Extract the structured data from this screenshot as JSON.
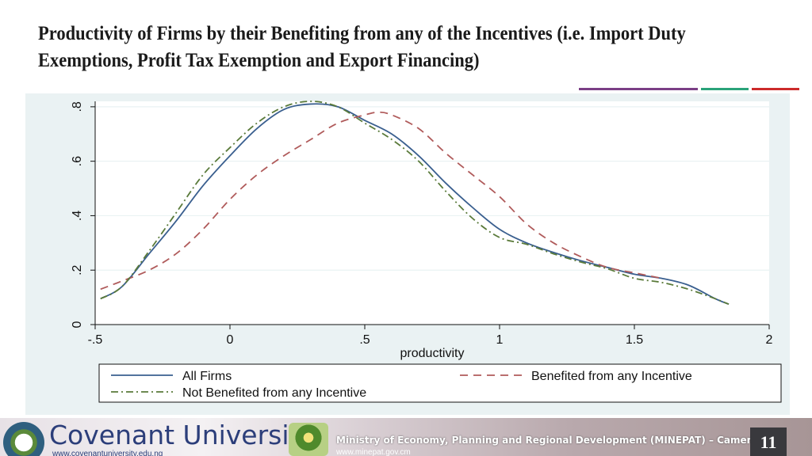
{
  "slide": {
    "title": "Productivity of Firms by their Benefiting from any of the Incentives (i.e. Import Duty Exemptions, Profit Tax Exemption and Export Financing)",
    "page_number": "11",
    "accent_colors": [
      "#7b3f85",
      "#2aa37a",
      "#cc2a2a"
    ]
  },
  "footer": {
    "university_name": "Covenant University",
    "university_url": "www.covenantuniversity.edu.ng",
    "ministry": "Ministry of Economy, Planning and Regional Development (MINEPAT) – Cameroon",
    "ministry_url": "www.minepat.gov.cm"
  },
  "chart_data": {
    "type": "line",
    "title": "",
    "xlabel": "productivity",
    "ylabel": "",
    "xlim": [
      -0.5,
      2
    ],
    "ylim": [
      0,
      0.82
    ],
    "x_ticks": [
      -0.5,
      0,
      0.5,
      1,
      1.5,
      2
    ],
    "x_tick_labels": [
      "-.5",
      "0",
      ".5",
      "1",
      "1.5",
      "2"
    ],
    "y_ticks": [
      0,
      0.2,
      0.4,
      0.6,
      0.8
    ],
    "y_tick_labels": [
      "0",
      ".2",
      ".4",
      ".6",
      ".8"
    ],
    "grid": true,
    "legend_position": "bottom",
    "series": [
      {
        "name": "All Firms",
        "color": "#3a5f8f",
        "dash": "solid",
        "points": [
          [
            -0.48,
            0.095
          ],
          [
            -0.4,
            0.14
          ],
          [
            -0.3,
            0.26
          ],
          [
            -0.2,
            0.38
          ],
          [
            -0.1,
            0.51
          ],
          [
            0,
            0.62
          ],
          [
            0.1,
            0.72
          ],
          [
            0.2,
            0.79
          ],
          [
            0.3,
            0.81
          ],
          [
            0.4,
            0.8
          ],
          [
            0.5,
            0.75
          ],
          [
            0.6,
            0.7
          ],
          [
            0.7,
            0.62
          ],
          [
            0.8,
            0.52
          ],
          [
            0.9,
            0.43
          ],
          [
            1.0,
            0.35
          ],
          [
            1.1,
            0.3
          ],
          [
            1.2,
            0.265
          ],
          [
            1.3,
            0.235
          ],
          [
            1.4,
            0.21
          ],
          [
            1.5,
            0.185
          ],
          [
            1.6,
            0.17
          ],
          [
            1.7,
            0.145
          ],
          [
            1.8,
            0.095
          ],
          [
            1.85,
            0.075
          ]
        ]
      },
      {
        "name": "Benefited from any Incentive",
        "color": "#b05b5b",
        "dash": "dash",
        "points": [
          [
            -0.48,
            0.13
          ],
          [
            -0.4,
            0.16
          ],
          [
            -0.3,
            0.2
          ],
          [
            -0.2,
            0.26
          ],
          [
            -0.1,
            0.35
          ],
          [
            0,
            0.46
          ],
          [
            0.1,
            0.55
          ],
          [
            0.2,
            0.62
          ],
          [
            0.3,
            0.68
          ],
          [
            0.4,
            0.74
          ],
          [
            0.5,
            0.77
          ],
          [
            0.55,
            0.78
          ],
          [
            0.6,
            0.77
          ],
          [
            0.7,
            0.72
          ],
          [
            0.8,
            0.63
          ],
          [
            0.9,
            0.55
          ],
          [
            1.0,
            0.47
          ],
          [
            1.1,
            0.37
          ],
          [
            1.2,
            0.3
          ],
          [
            1.3,
            0.25
          ],
          [
            1.4,
            0.21
          ],
          [
            1.5,
            0.19
          ],
          [
            1.6,
            0.17
          ]
        ]
      },
      {
        "name": "Not Benefited from any Incentive",
        "color": "#5a7a3a",
        "dash": "dashdot",
        "points": [
          [
            -0.48,
            0.095
          ],
          [
            -0.4,
            0.14
          ],
          [
            -0.3,
            0.27
          ],
          [
            -0.2,
            0.41
          ],
          [
            -0.1,
            0.55
          ],
          [
            0,
            0.65
          ],
          [
            0.1,
            0.74
          ],
          [
            0.2,
            0.8
          ],
          [
            0.3,
            0.82
          ],
          [
            0.4,
            0.8
          ],
          [
            0.5,
            0.74
          ],
          [
            0.6,
            0.68
          ],
          [
            0.7,
            0.6
          ],
          [
            0.8,
            0.49
          ],
          [
            0.9,
            0.39
          ],
          [
            1.0,
            0.32
          ],
          [
            1.1,
            0.295
          ],
          [
            1.2,
            0.26
          ],
          [
            1.3,
            0.23
          ],
          [
            1.4,
            0.205
          ],
          [
            1.5,
            0.17
          ],
          [
            1.6,
            0.155
          ],
          [
            1.7,
            0.13
          ],
          [
            1.8,
            0.095
          ],
          [
            1.85,
            0.075
          ]
        ]
      }
    ]
  }
}
